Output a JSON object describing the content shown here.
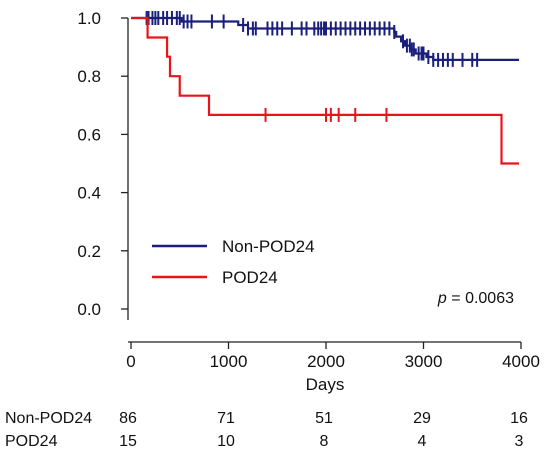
{
  "chart_data": {
    "type": "line",
    "subtype": "kaplan-meier",
    "title": "",
    "xlabel": "Days",
    "ylabel": "",
    "xlim": [
      0,
      4000
    ],
    "ylim": [
      0,
      1.0
    ],
    "x_ticks": [
      "0",
      "1000",
      "2000",
      "3000",
      "4000"
    ],
    "y_ticks": [
      "0.0",
      "0.2",
      "0.4",
      "0.6",
      "0.8",
      "1.0"
    ],
    "grid": false,
    "legend_position": "lower-left",
    "series": [
      {
        "name": "Non-POD24",
        "color": "#1a1f7a",
        "steps": [
          [
            0,
            1.0
          ],
          [
            520,
            0.988
          ],
          [
            1100,
            0.976
          ],
          [
            1200,
            0.964
          ],
          [
            2700,
            0.952
          ],
          [
            2720,
            0.936
          ],
          [
            2770,
            0.92
          ],
          [
            2810,
            0.905
          ],
          [
            2870,
            0.892
          ],
          [
            2920,
            0.878
          ],
          [
            3030,
            0.866
          ],
          [
            3100,
            0.856
          ]
        ],
        "end_x": 3980,
        "censor_x": [
          160,
          180,
          220,
          250,
          280,
          330,
          370,
          420,
          470,
          500,
          540,
          580,
          620,
          830,
          950,
          1150,
          1200,
          1250,
          1280,
          1400,
          1450,
          1500,
          1550,
          1650,
          1750,
          1800,
          1880,
          1920,
          1950,
          1980,
          2000,
          2050,
          2100,
          2150,
          2200,
          2250,
          2300,
          2350,
          2400,
          2450,
          2500,
          2550,
          2600,
          2650,
          2700,
          2790,
          2830,
          2860,
          2880,
          2900,
          2950,
          2980,
          3000,
          3050,
          3100,
          3150,
          3200,
          3250,
          3300,
          3400,
          3500,
          3550
        ]
      },
      {
        "name": "POD24",
        "color": "#e8141a",
        "steps": [
          [
            0,
            1.0
          ],
          [
            170,
            0.933
          ],
          [
            370,
            0.867
          ],
          [
            400,
            0.8
          ],
          [
            500,
            0.733
          ],
          [
            800,
            0.667
          ],
          [
            3800,
            0.5
          ]
        ],
        "end_x": 3980,
        "censor_x": [
          1380,
          2000,
          2050,
          2130,
          2300,
          2620
        ]
      }
    ],
    "annotation": {
      "prefix": "p",
      "text": " = 0.0063"
    },
    "risk_table": {
      "time_points": [
        0,
        1000,
        2000,
        3000,
        4000
      ],
      "rows": [
        {
          "label": "Non-POD24",
          "values": [
            "86",
            "71",
            "51",
            "29",
            "16"
          ]
        },
        {
          "label": "POD24",
          "values": [
            "15",
            "10",
            "8",
            "4",
            "3"
          ]
        }
      ]
    }
  }
}
